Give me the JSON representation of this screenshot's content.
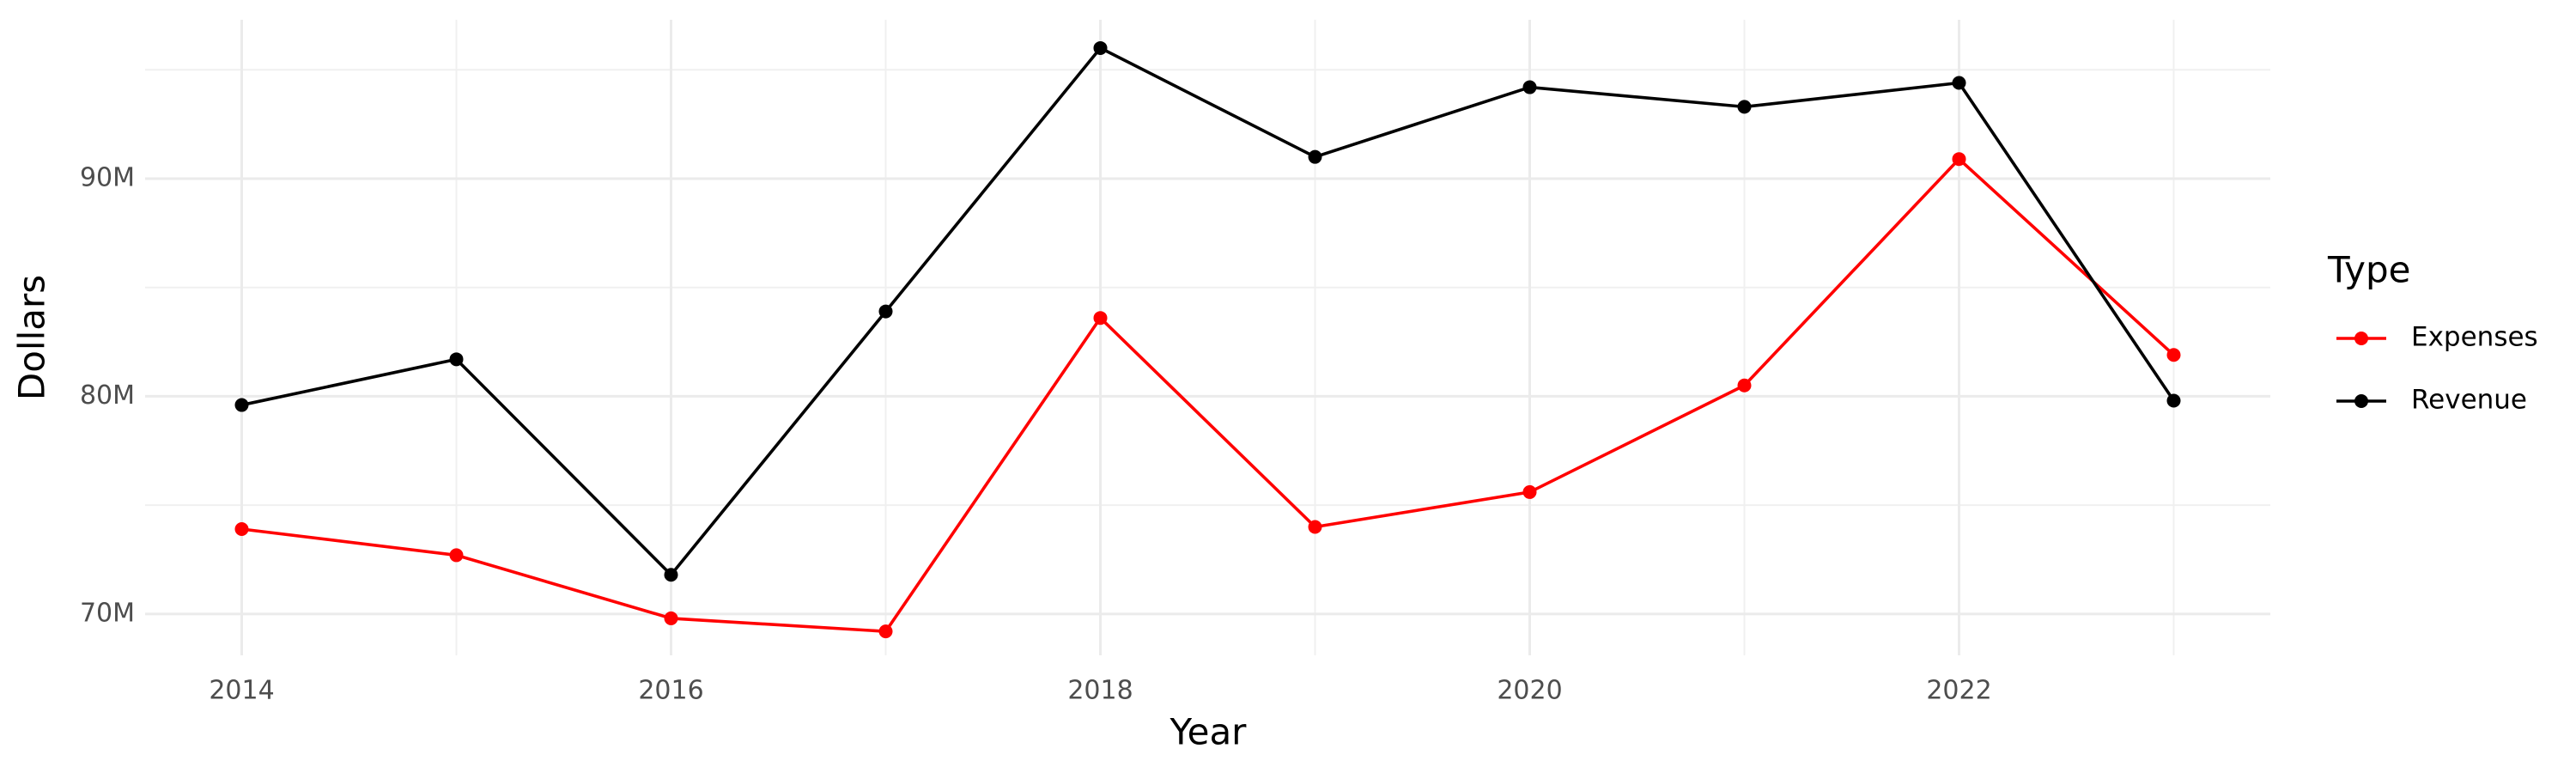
{
  "chart_data": {
    "type": "line",
    "x_label": "Year",
    "y_label": "Dollars",
    "legend_title": "Type",
    "legend_position": "right",
    "grid": true,
    "x": [
      2014,
      2015,
      2016,
      2017,
      2018,
      2019,
      2020,
      2021,
      2022,
      2023
    ],
    "series": [
      {
        "name": "Expenses",
        "color": "#ff0000",
        "values": [
          73900000,
          72700000,
          69800000,
          69200000,
          83600000,
          74000000,
          75600000,
          80500000,
          90900000,
          81900000
        ]
      },
      {
        "name": "Revenue",
        "color": "#000000",
        "values": [
          79600000,
          81700000,
          71800000,
          83900000,
          96000000,
          91000000,
          94200000,
          93300000,
          94400000,
          79800000
        ]
      }
    ],
    "xlim": [
      2013.55,
      2023.45
    ],
    "xticks": [
      2014,
      2016,
      2018,
      2020,
      2022
    ],
    "ylim": [
      68100000,
      97300000
    ],
    "yticks": [
      {
        "value": 70000000,
        "label": "70M"
      },
      {
        "value": 80000000,
        "label": "80M"
      },
      {
        "value": 90000000,
        "label": "90M"
      }
    ]
  }
}
